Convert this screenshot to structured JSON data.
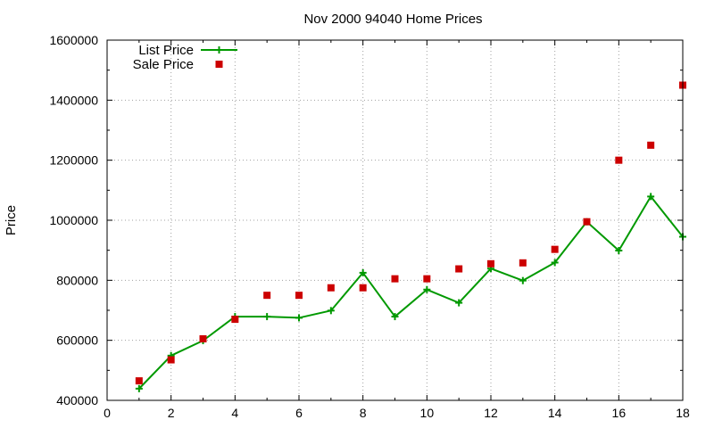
{
  "chart_data": {
    "type": "line",
    "title": "Nov 2000 94040 Home Prices",
    "xlabel": "",
    "ylabel": "Price",
    "xlim": [
      0,
      18
    ],
    "ylim": [
      400000,
      1600000
    ],
    "xticks": [
      "0",
      "2",
      "4",
      "6",
      "8",
      "10",
      "12",
      "14",
      "16",
      "18"
    ],
    "yticks": [
      "400000",
      "600000",
      "800000",
      "1000000",
      "1200000",
      "1400000",
      "1600000"
    ],
    "grid": true,
    "legend_position": "top-left",
    "x": [
      1,
      2,
      3,
      4,
      5,
      6,
      7,
      8,
      9,
      10,
      11,
      12,
      13,
      14,
      15,
      16,
      17,
      18
    ],
    "series": [
      {
        "name": "List Price",
        "style": "lines+points",
        "marker": "plus",
        "color": "#009900",
        "values": [
          439000,
          549000,
          599000,
          679000,
          679000,
          675000,
          699000,
          825000,
          679000,
          769000,
          725000,
          839000,
          799000,
          859000,
          995000,
          899000,
          1079000,
          945000
        ]
      },
      {
        "name": "Sale Price",
        "style": "points",
        "marker": "square",
        "color": "#cc0000",
        "values": [
          465000,
          535000,
          605000,
          670000,
          750000,
          750000,
          775000,
          775000,
          805000,
          805000,
          838000,
          855000,
          858000,
          903000,
          995000,
          1200000,
          1250000,
          1450000
        ]
      }
    ]
  }
}
